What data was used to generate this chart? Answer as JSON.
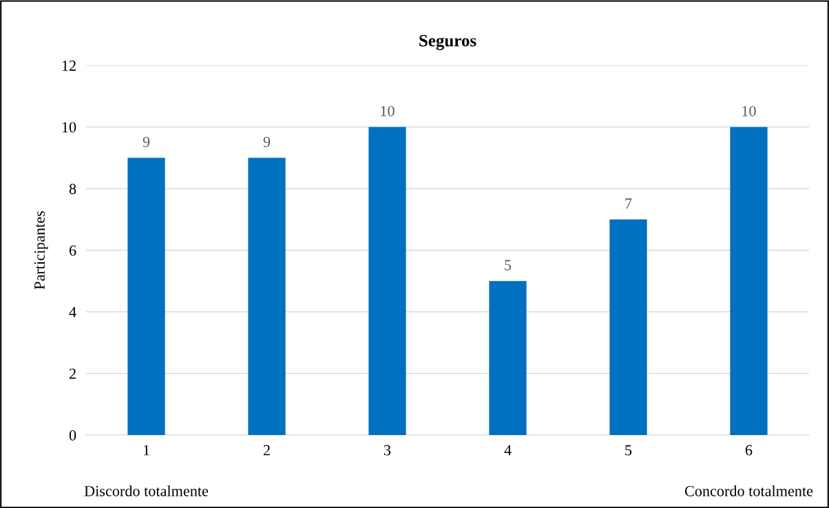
{
  "chart_data": {
    "type": "bar",
    "title": "Seguros",
    "ylabel": "Participantes",
    "categories": [
      "1",
      "2",
      "3",
      "4",
      "5",
      "6"
    ],
    "values": [
      9,
      9,
      10,
      5,
      7,
      10
    ],
    "color": "#0070c0",
    "ylim": [
      0,
      12
    ],
    "yticks": [
      0,
      2,
      4,
      6,
      8,
      10,
      12
    ],
    "grid": "y",
    "data_labels": true,
    "legend": false,
    "annotations": [
      "Discordo totalmente",
      "Concordo totalmente"
    ]
  }
}
